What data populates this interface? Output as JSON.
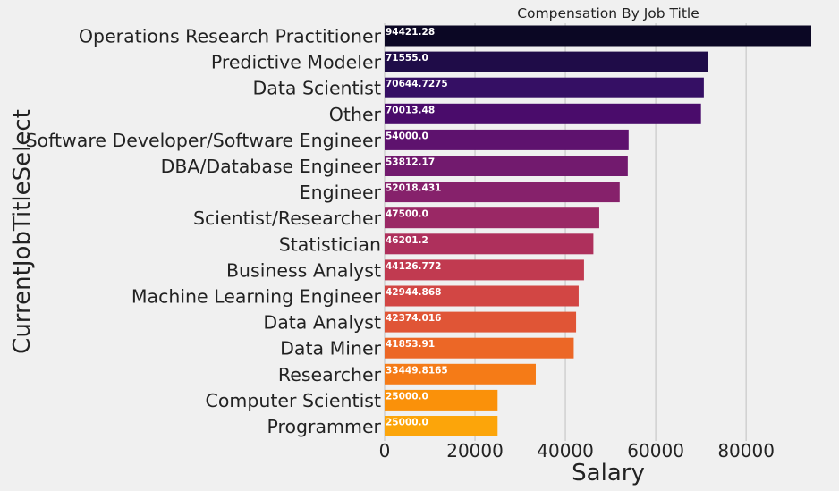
{
  "chart_data": {
    "type": "bar",
    "orientation": "horizontal",
    "title": "Compensation By Job Title",
    "xlabel": "Salary",
    "ylabel": "CurrentJobTitleSelect",
    "xlim": [
      0,
      94421.28
    ],
    "xticks": [
      0,
      20000,
      40000,
      60000,
      80000
    ],
    "xtick_labels": [
      "0",
      "20000",
      "40000",
      "60000",
      "80000"
    ],
    "grid": "x-axis vertical lines",
    "categories": [
      "Operations Research Practitioner",
      "Predictive Modeler",
      "Data Scientist",
      "Other",
      "Software Developer/Software Engineer",
      "DBA/Database Engineer",
      "Engineer",
      "Scientist/Researcher",
      "Statistician",
      "Business Analyst",
      "Machine Learning Engineer",
      "Data Analyst",
      "Data Miner",
      "Researcher",
      "Computer Scientist",
      "Programmer"
    ],
    "values": [
      94421.28,
      71555.0,
      70644.7275,
      70013.48,
      54000.0,
      53812.17,
      52018.431,
      47500.0,
      46201.2,
      44126.772,
      42944.868,
      42374.016,
      41853.91,
      33449.8165,
      25000.0,
      25000.0
    ],
    "value_labels": [
      "94421.28",
      "71555.0",
      "70644.7275",
      "70013.48",
      "54000.0",
      "53812.17",
      "52018.431",
      "47500.0",
      "46201.2",
      "44126.772",
      "42944.868",
      "42374.016",
      "41853.91",
      "33449.8165",
      "25000.0",
      "25000.0"
    ],
    "colors": [
      "#0b0724",
      "#1f0c48",
      "#350f64",
      "#4a0c6b",
      "#5e126e",
      "#721a6e",
      "#86216b",
      "#9a2865",
      "#ae305c",
      "#c13a50",
      "#d24644",
      "#e05536",
      "#ec6726",
      "#f57b17",
      "#fa910a",
      "#fca50a"
    ],
    "palette": "inferno"
  }
}
